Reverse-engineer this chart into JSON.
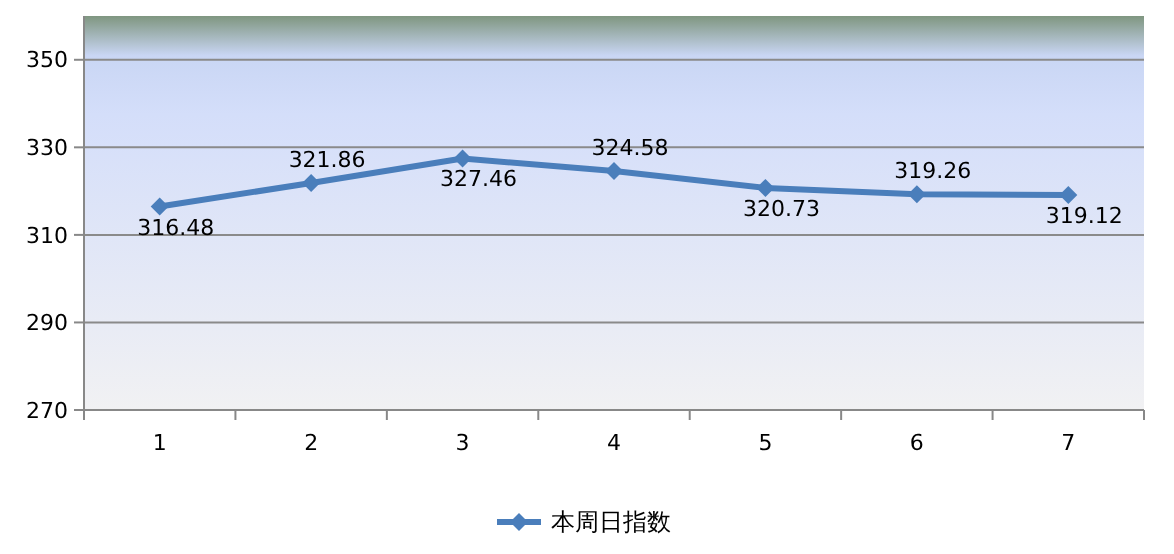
{
  "chart_data": {
    "type": "line",
    "categories": [
      "1",
      "2",
      "3",
      "4",
      "5",
      "6",
      "7"
    ],
    "series": [
      {
        "name": "本周日指数",
        "color": "#4a7ebb",
        "values": [
          316.48,
          321.86,
          327.46,
          324.58,
          320.73,
          319.26,
          319.12
        ]
      }
    ],
    "ylim": [
      270,
      360
    ],
    "yticks": [
      270,
      290,
      310,
      330,
      350
    ],
    "grid": "y",
    "legend": "bottom",
    "marker": "diamond",
    "line_style": "solid",
    "data_labels": true
  }
}
